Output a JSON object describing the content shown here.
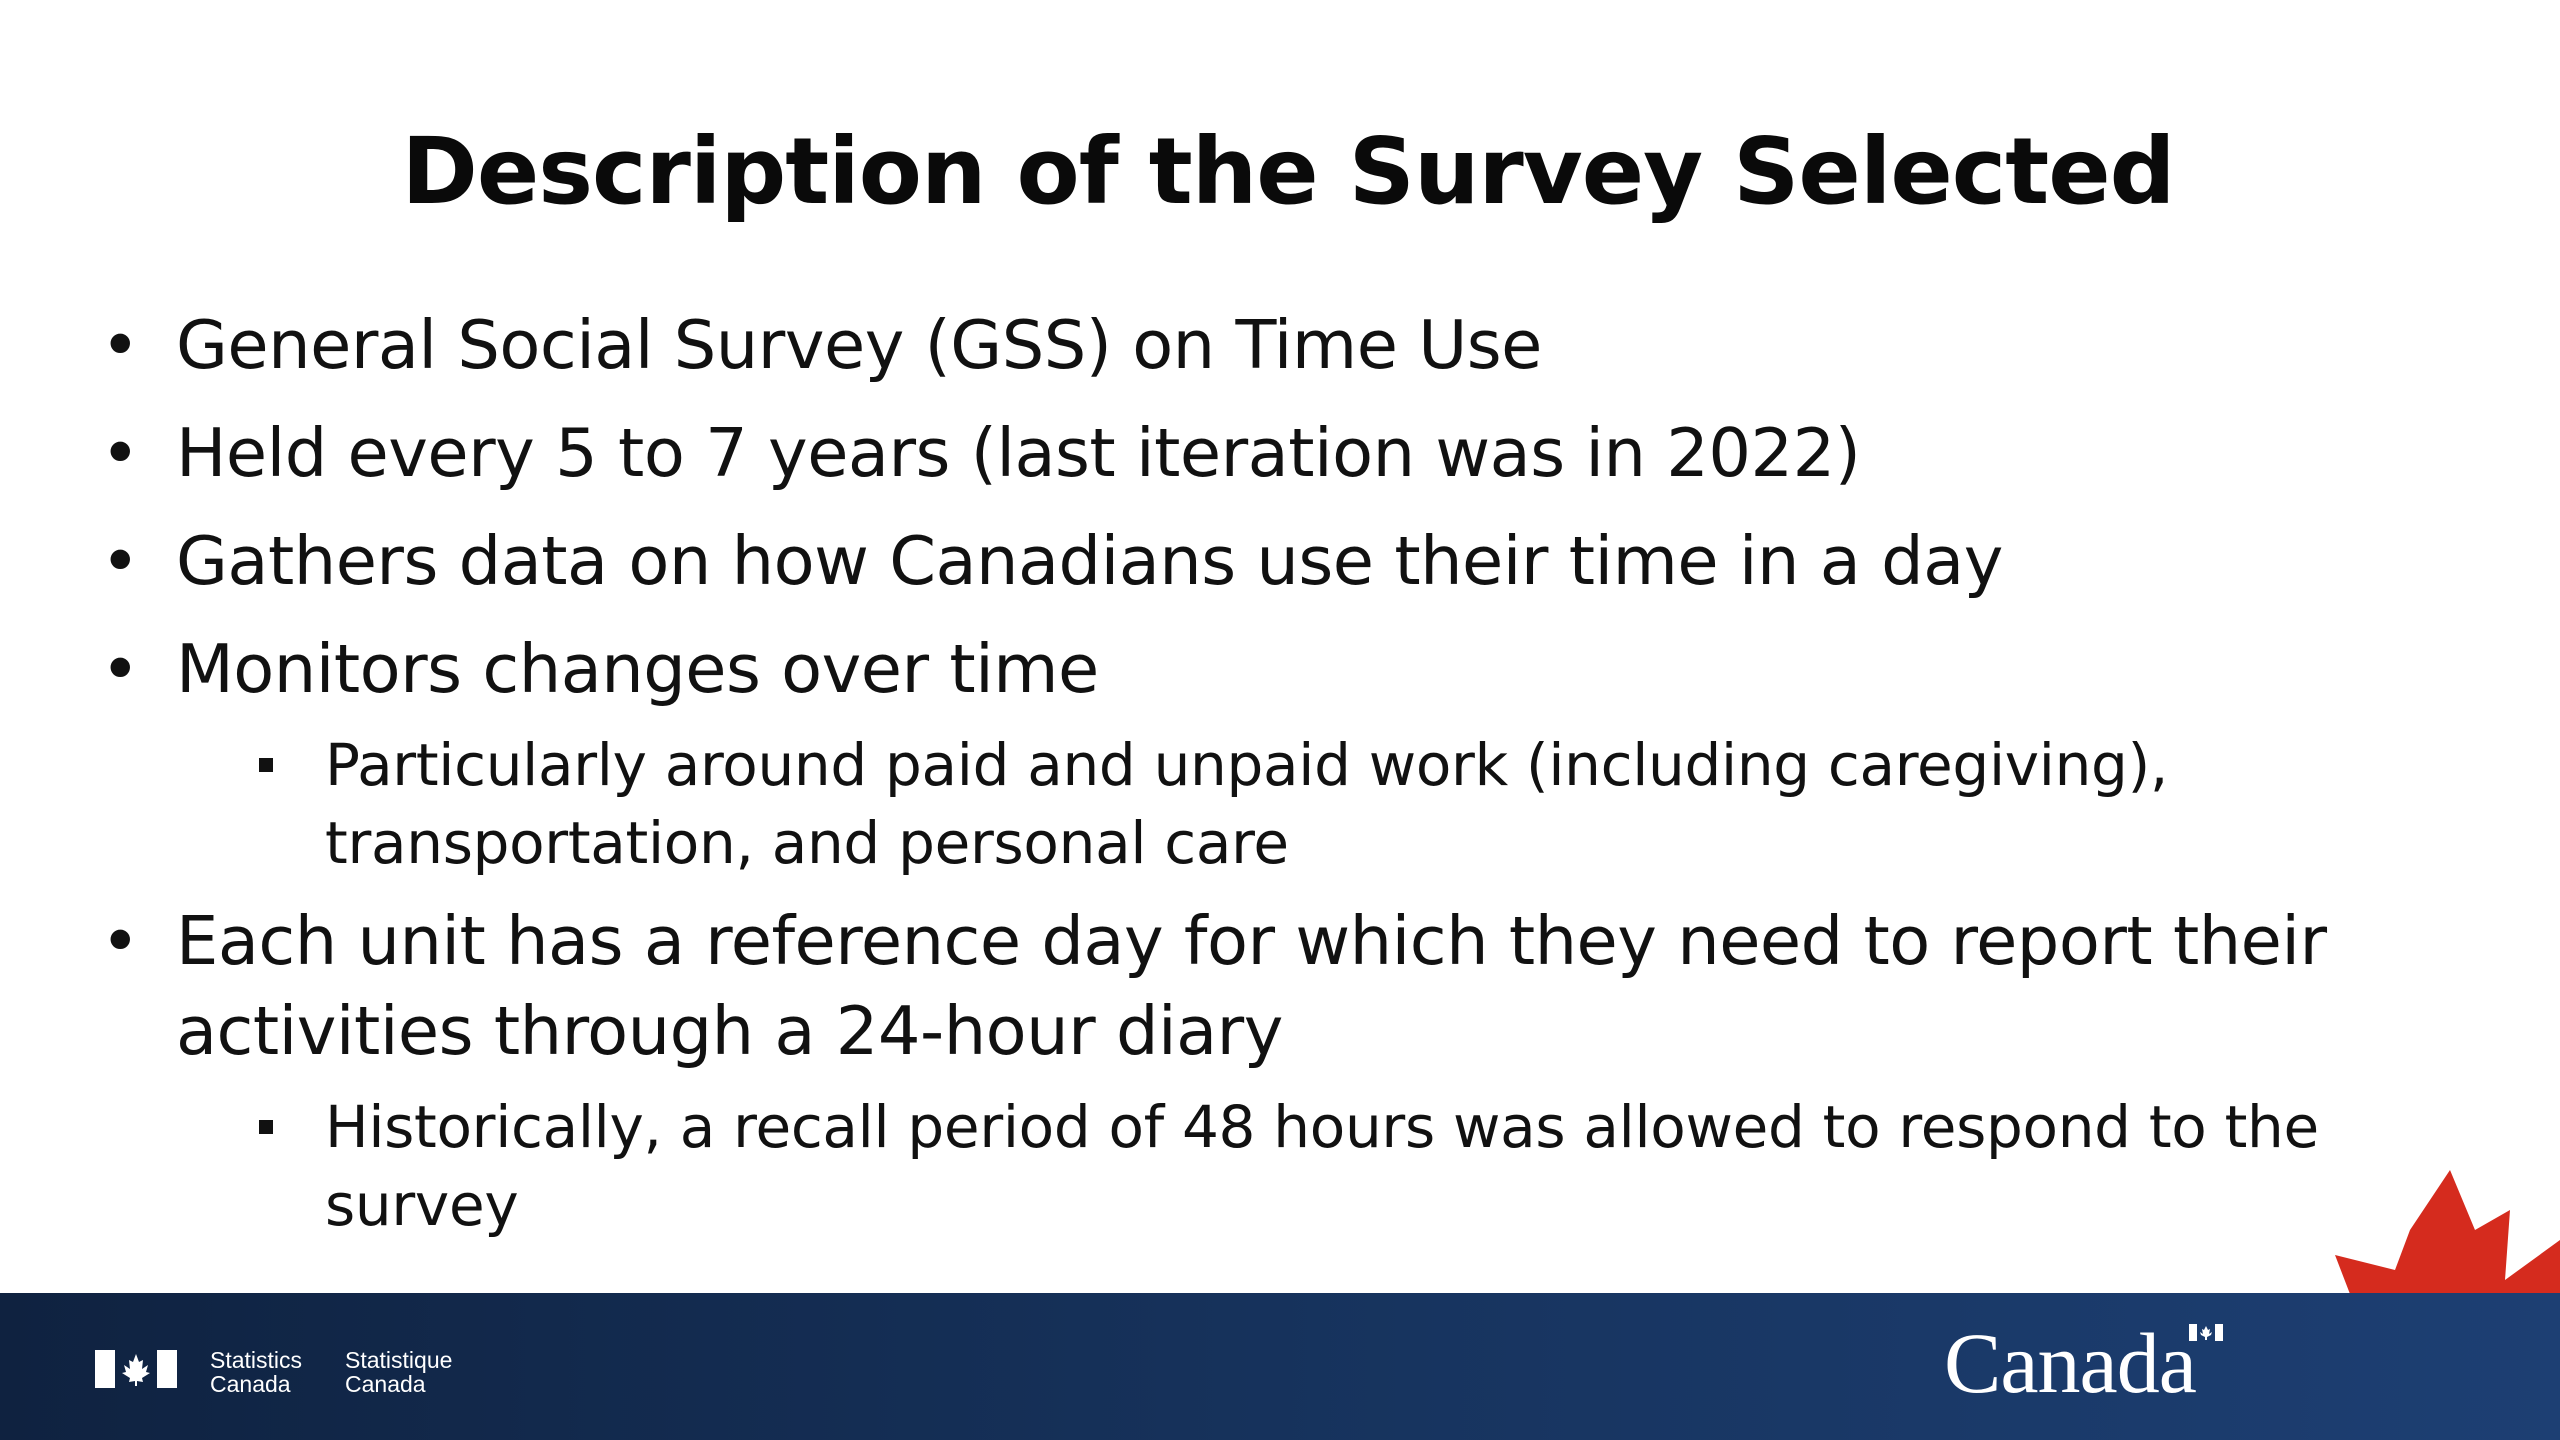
{
  "slide": {
    "title": "Description of the Survey Selected",
    "bullets": [
      {
        "text": "General Social Survey (GSS) on Time Use"
      },
      {
        "text": "Held every 5 to 7 years (last iteration was in 2022)"
      },
      {
        "text": "Gathers data on how Canadians use their time in a day"
      },
      {
        "text": "Monitors changes over time"
      },
      {
        "text": "Each unit has a reference day for which they need to report their activities through a 24-hour diary"
      }
    ],
    "sub_bullets": [
      {
        "text": "Particularly around paid and unpaid work (including caregiving), transportation, and personal care"
      },
      {
        "text": "Historically, a recall period of 48 hours was allowed to respond to the survey"
      }
    ]
  },
  "footer": {
    "agency_en_line1": "Statistics",
    "agency_en_line2": "Canada",
    "agency_fr_line1": "Statistique",
    "agency_fr_line2": "Canada",
    "wordmark": "Canada",
    "flag_icon": "canada-flag-icon",
    "leaf_icon": "maple-leaf-icon",
    "colors": {
      "footer_dark": "#0f2240",
      "footer_light": "#1d3f73",
      "leaf_red": "#d52b1e"
    }
  }
}
